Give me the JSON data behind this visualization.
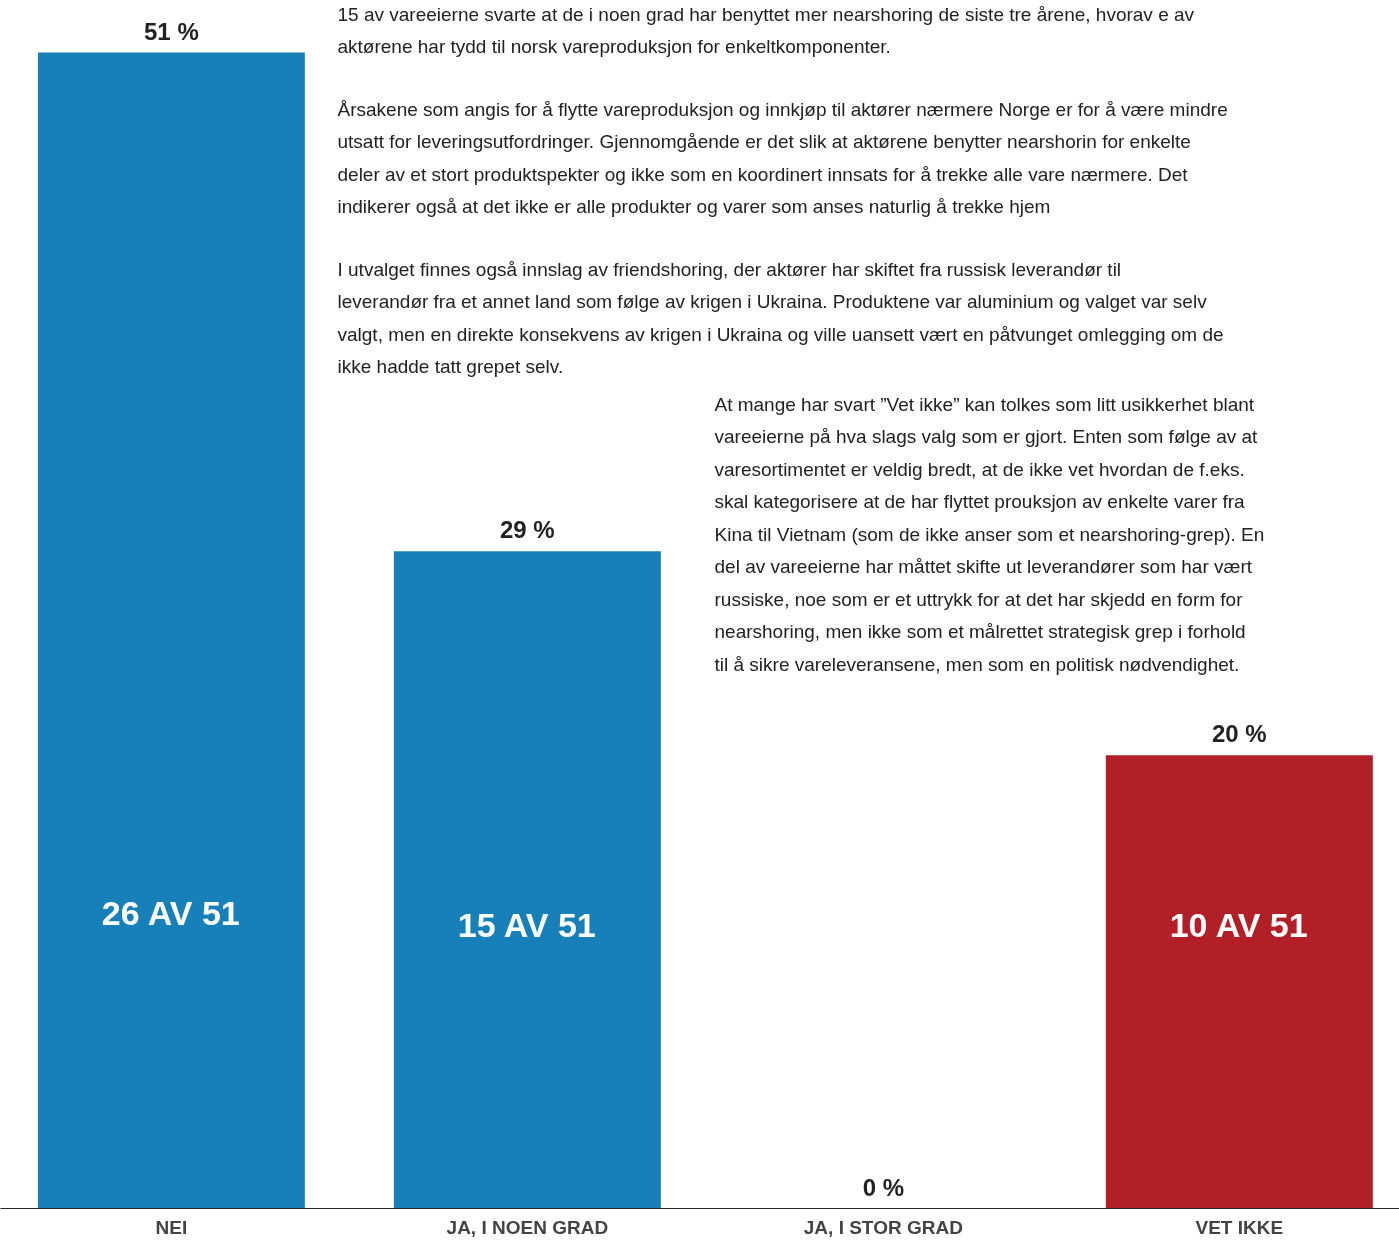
{
  "chart_data": {
    "type": "bar",
    "categories": [
      "NEI",
      "JA, I NOEN GRAD",
      "JA, I STOR GRAD",
      "VET IKKE"
    ],
    "values": [
      51,
      29,
      0,
      20
    ],
    "colors": [
      "#1880b8",
      "#1880b8",
      "#1880b8",
      "#b31f26"
    ],
    "value_labels": [
      "51 %",
      "29 %",
      "0 %",
      "20 %"
    ],
    "annotations": [
      "15 av vareeierne svarte at de i noen grad har benyttet mer nearshoring de siste tre årene, hvorav e av aktørene har tydd til norsk vareproduksjon for enkeltkomponenter.",
      "Årsakene som angis for å flytte vareproduksjon og innkjøp til aktører nærmere Norge er for å være mindre utsatt for leveringsutfordringer. Gjennomgående er det slik at aktørene benytter nearshorin for enkelte deler av et stort produktspekter og ikke som en koordinert innsats for å trekke alle vare nærmere. Det indikerer også at det ikke er alle produkter og varer som anses naturlig å trekke hjem",
      "I utvalget finnes også innslag av friendshoring, der aktører har skiftet fra russisk leverandør til leverandør fra et annet land som følge av krigen i Ukraina. Produktene var aluminium og valget var selv valgt, men en direkte konsekvens av krigen i Ukraina og ville uansett vært en påtvunget omlegging om de ikke hadde tatt grepet selv.",
      "At mange har svart ”Vet ikke” kan tolkes som litt usikkerhet blant vareeierne på hva slags valg som er gjort. Enten som følge av at varesortimentet er veldig bredt, at de ikke vet hvordan de f.eks. skal kategorisere at de har flyttet prouksjon av enkelte varer fra Kina til Vietnam (som de ikke anser som et nearshoring-grep). En del av vareeierne har måttet skifte ut leverandører som har vært russiske, noe som er et uttrykk for at det har skjedd en form for nearshoring, men ikke som et målrettet strategisk grep i forhold til å sikre vareleveransene, men som en politisk nødvendighet.",
      "26 AV 51",
      "15 AV 51",
      "10 AV 51"
    ]
  }
}
